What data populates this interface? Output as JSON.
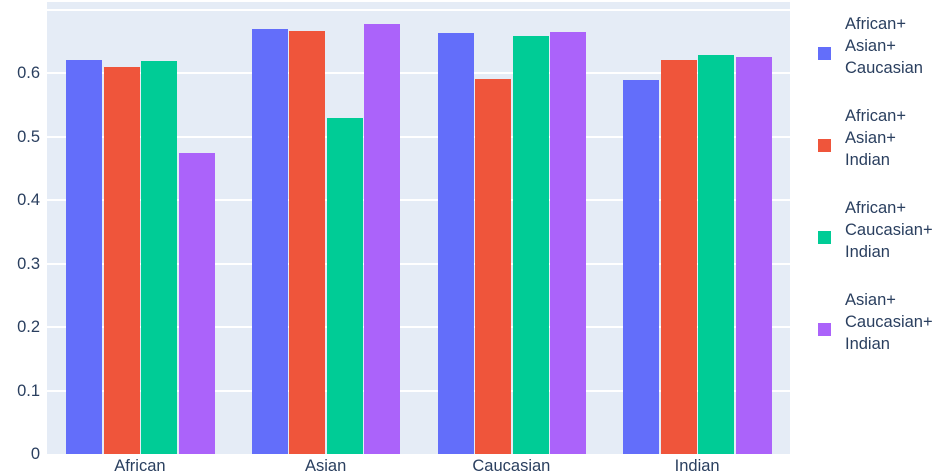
{
  "colors": {
    "page_bg": "#FFFFFF",
    "plot_bg": "#E5ECF6",
    "grid": "#FFFFFF",
    "text": "#2A3F5F"
  },
  "chart_data": {
    "type": "bar",
    "barmode": "group",
    "title": "",
    "xlabel": "",
    "ylabel": "",
    "grid": true,
    "legend_position": "right",
    "categories": [
      "African",
      "Asian",
      "Caucasian",
      "Indian"
    ],
    "series": [
      {
        "name": "African+\nAsian+\nCaucasian",
        "color": "#636EFA",
        "values": [
          0.62,
          0.67,
          0.663,
          0.589
        ]
      },
      {
        "name": "African+\nAsian+\nIndian",
        "color": "#EF553B",
        "values": [
          0.61,
          0.667,
          0.59,
          0.62
        ]
      },
      {
        "name": "African+\nCaucasian+\nIndian",
        "color": "#00CC96",
        "values": [
          0.619,
          0.53,
          0.658,
          0.628
        ]
      },
      {
        "name": "Asian+\nCaucasian+\nIndian",
        "color": "#AB63FA",
        "values": [
          0.474,
          0.677,
          0.665,
          0.625
        ]
      }
    ],
    "ylim": [
      0,
      0.712
    ],
    "ytick_values": [
      0,
      0.1,
      0.2,
      0.3,
      0.4,
      0.5,
      0.6
    ],
    "ytick_labels": [
      "0",
      "0.1",
      "0.2",
      "0.3",
      "0.4",
      "0.5",
      "0.6"
    ],
    "gridline_values": [
      0.1,
      0.2,
      0.3,
      0.4,
      0.5,
      0.6,
      0.7
    ]
  }
}
